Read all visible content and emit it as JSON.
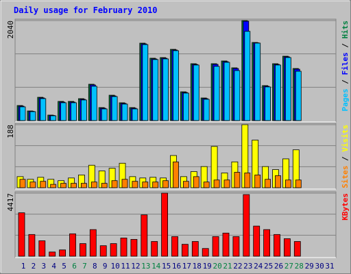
{
  "chart_data": {
    "type": "bar",
    "title": "Daily usage for February 2010",
    "legend_separator": " / ",
    "categories": [
      "1",
      "2",
      "3",
      "4",
      "5",
      "6",
      "7",
      "8",
      "9",
      "10",
      "11",
      "12",
      "13",
      "14",
      "15",
      "16",
      "17",
      "18",
      "19",
      "20",
      "21",
      "22",
      "23",
      "24",
      "25",
      "26",
      "27",
      "28",
      "29",
      "30",
      "31"
    ],
    "category_colors": [
      "#000080",
      "#000080",
      "#000080",
      "#000080",
      "#000080",
      "#008040",
      "#008040",
      "#000080",
      "#000080",
      "#000080",
      "#000080",
      "#000080",
      "#008040",
      "#008040",
      "#000080",
      "#000080",
      "#000080",
      "#000080",
      "#000080",
      "#008040",
      "#008040",
      "#000080",
      "#000080",
      "#000080",
      "#000080",
      "#000080",
      "#008040",
      "#008040",
      "#000080",
      "#000080",
      "#000080"
    ],
    "grid": true,
    "panels": [
      {
        "ylim": [
          0,
          2040
        ],
        "yticks": [
          2040
        ],
        "series": [
          {
            "name": "Pages",
            "color": "#00c0ff",
            "values": [
              280,
              182,
              448,
              98,
              364,
              364,
              420,
              700,
              238,
              490,
              336,
              238,
              1550,
              1245,
              1258,
              1426,
              560,
              1133,
              434,
              1106,
              1188,
              1020,
              1820,
              1580,
              686,
              1133,
              1286,
              1006,
              null,
              null,
              null
            ]
          },
          {
            "name": "Files",
            "color": "#0000ff",
            "values": [
              294,
              189,
              462,
              105,
              378,
              378,
              434,
              727,
              252,
              503,
              350,
              252,
              1565,
              1258,
              1272,
              1440,
              573,
              1146,
              448,
              1146,
              1202,
              1062,
              2026,
              1586,
              700,
              1146,
              1300,
              1048,
              null,
              null,
              null
            ]
          },
          {
            "name": "Hits",
            "color": "#008040",
            "values": [
              307,
              196,
              475,
              112,
              391,
              391,
              447,
              741,
              265,
              517,
              363,
              265,
              1579,
              1272,
              1285,
              1453,
              587,
              1160,
              461,
              1160,
              1216,
              1076,
              2040,
              1593,
              713,
              1160,
              1313,
              1062,
              null,
              null,
              null
            ]
          }
        ]
      },
      {
        "ylim": [
          0,
          188
        ],
        "yticks": [
          188
        ],
        "series": [
          {
            "name": "Sites",
            "color": "#ff8000",
            "values": [
              25,
              17,
              19,
              10,
              13,
              13,
              13,
              17,
              13,
              21,
              25,
              19,
              17,
              17,
              21,
              77,
              19,
              33,
              17,
              23,
              23,
              46,
              44,
              38,
              25,
              36,
              23,
              23,
              null,
              null,
              null
            ]
          },
          {
            "name": "Visits",
            "color": "#ffff00",
            "values": [
              33,
              25,
              31,
              25,
              21,
              29,
              38,
              67,
              50,
              58,
              73,
              33,
              29,
              31,
              29,
              96,
              33,
              48,
              63,
              123,
              44,
              77,
              188,
              142,
              63,
              54,
              86,
              113,
              null,
              null,
              null
            ]
          }
        ]
      },
      {
        "ylim": [
          0,
          4417
        ],
        "yticks": [
          4417
        ],
        "series": [
          {
            "name": "KBytes",
            "color": "#ff0000",
            "values": [
              3043,
              1521,
              1080,
              294,
              442,
              1570,
              883,
              1865,
              736,
              883,
              1276,
              1178,
              2896,
              1031,
              4417,
              1374,
              834,
              1031,
              540,
              1374,
              1620,
              1374,
              4319,
              2110,
              1865,
              1521,
              1227,
              1031,
              null,
              null,
              null
            ]
          }
        ]
      }
    ]
  }
}
